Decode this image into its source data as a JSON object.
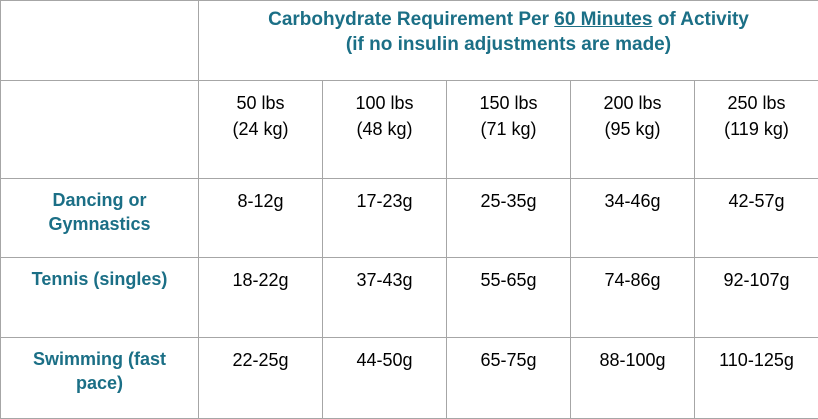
{
  "header": {
    "title": {
      "before": "Carbohydrate Requirement Per",
      "underlined": "60 Minutes",
      "after": "of Activity"
    },
    "subtitle": "(if no insulin adjustments are made)"
  },
  "table": {
    "columns": [
      {
        "lbs": "50 lbs",
        "kg": "(24 kg)"
      },
      {
        "lbs": "100 lbs",
        "kg": "(48 kg)"
      },
      {
        "lbs": "150 lbs",
        "kg": "(71 kg)"
      },
      {
        "lbs": "200 lbs",
        "kg": "(95 kg)"
      },
      {
        "lbs": "250 lbs",
        "kg": "(119 kg)"
      }
    ],
    "rows": [
      {
        "activity": "Dancing or Gymnastics",
        "cells": [
          "8-12g",
          "17-23g",
          "25-35g",
          "34-46g",
          "42-57g"
        ]
      },
      {
        "activity": "Tennis (singles)",
        "cells": [
          "18-22g",
          "37-43g",
          "55-65g",
          "74-86g",
          "92-107g"
        ]
      },
      {
        "activity": "Swimming (fast pace)",
        "cells": [
          "22-25g",
          "44-50g",
          "65-75g",
          "88-100g",
          "110-125g"
        ]
      }
    ]
  }
}
